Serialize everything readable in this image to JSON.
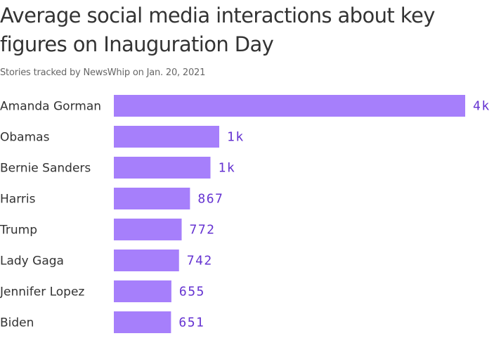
{
  "chart_data": {
    "type": "bar",
    "orientation": "horizontal",
    "title": "Average social media interactions about key figures on Inauguration Day",
    "subtitle": "Stories tracked by NewsWhip on Jan. 20, 2021",
    "categories": [
      "Amanda Gorman",
      "Obamas",
      "Bernie Sanders",
      "Harris",
      "Trump",
      "Lady Gaga",
      "Jennifer Lopez",
      "Biden"
    ],
    "values": [
      4000,
      1200,
      1100,
      867,
      772,
      742,
      655,
      651
    ],
    "value_labels": [
      "4k",
      "1k",
      "1k",
      "867",
      "772",
      "742",
      "655",
      "651"
    ],
    "xlim": [
      0,
      4000
    ],
    "grid": false,
    "legend": "none",
    "colors": {
      "bar": "#a67ffb",
      "value_label": "#6533d1",
      "text": "#333333",
      "subtitle": "#666666"
    }
  }
}
